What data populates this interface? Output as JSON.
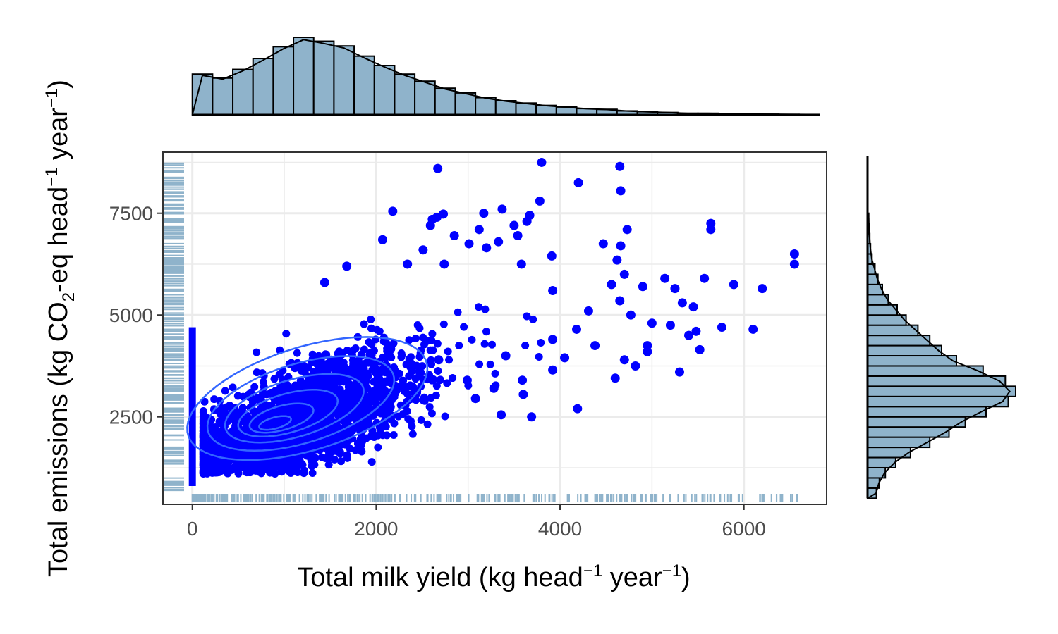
{
  "chart_data": {
    "type": "scatter",
    "title": "",
    "xlabel": {
      "before": "Total milk yield (kg head",
      "sup1": "−1",
      "mid": " year",
      "sup2": "−1",
      "after": ")"
    },
    "ylabel": {
      "part1": "Total emissions (kg CO",
      "sub": "2",
      "part2": "-eq head",
      "sup1": "−1",
      "part3": " year",
      "sup2": "−1",
      "part4": ")"
    },
    "xlim": [
      -320,
      6900
    ],
    "ylim": [
      350,
      9000
    ],
    "x_ticks": [
      0,
      2000,
      4000,
      6000
    ],
    "x_tick_labels": [
      "0",
      "2000",
      "4000",
      "6000"
    ],
    "y_ticks": [
      2500,
      5000,
      7500
    ],
    "y_tick_labels": [
      "2500",
      "5000",
      "7500"
    ],
    "grid": true,
    "legend": "none",
    "colors": {
      "points": "#0000ff",
      "density_contours": "#3366ff",
      "marginal_fill": "#8fb3cb",
      "rug": "#8fb3cb",
      "outline": "#000000",
      "grid": "#ebebeb",
      "panel_border": "#333333"
    },
    "points": [
      [
        3800,
        8750
      ],
      [
        4650,
        8650
      ],
      [
        2670,
        8600
      ],
      [
        4200,
        8250
      ],
      [
        4660,
        8050
      ],
      [
        3780,
        7800
      ],
      [
        2180,
        7550
      ],
      [
        2730,
        7480
      ],
      [
        3170,
        7500
      ],
      [
        3370,
        7600
      ],
      [
        3670,
        7450
      ],
      [
        2610,
        7350
      ],
      [
        2660,
        7400
      ],
      [
        3640,
        7300
      ],
      [
        4730,
        7100
      ],
      [
        5640,
        7250
      ],
      [
        5640,
        7100
      ],
      [
        2590,
        7200
      ],
      [
        3120,
        7100
      ],
      [
        3500,
        7200
      ],
      [
        2850,
        6950
      ],
      [
        3330,
        6800
      ],
      [
        3540,
        6950
      ],
      [
        4470,
        6750
      ],
      [
        4660,
        6700
      ],
      [
        2070,
        6850
      ],
      [
        2510,
        6600
      ],
      [
        3010,
        6750
      ],
      [
        3200,
        6650
      ],
      [
        3910,
        6450
      ],
      [
        4620,
        6350
      ],
      [
        6550,
        6500
      ],
      [
        6550,
        6250
      ],
      [
        1680,
        6200
      ],
      [
        2340,
        6250
      ],
      [
        2740,
        6250
      ],
      [
        3580,
        6250
      ],
      [
        4700,
        6000
      ],
      [
        5140,
        5900
      ],
      [
        5250,
        5650
      ],
      [
        5570,
        5900
      ],
      [
        5890,
        5750
      ],
      [
        6200,
        5650
      ],
      [
        1440,
        5800
      ],
      [
        4560,
        5750
      ],
      [
        4900,
        5700
      ],
      [
        4650,
        5350
      ],
      [
        3920,
        5600
      ],
      [
        4310,
        5100
      ],
      [
        4770,
        5000
      ],
      [
        5330,
        5300
      ],
      [
        5450,
        5200
      ],
      [
        5000,
        4800
      ],
      [
        5200,
        4750
      ],
      [
        5480,
        4600
      ],
      [
        5760,
        4700
      ],
      [
        6100,
        4650
      ],
      [
        4180,
        4650
      ],
      [
        3920,
        4400
      ],
      [
        4950,
        4250
      ],
      [
        5400,
        4500
      ],
      [
        5520,
        4150
      ],
      [
        5300,
        3600
      ],
      [
        4600,
        3450
      ],
      [
        4380,
        4250
      ],
      [
        4820,
        3750
      ],
      [
        4190,
        2700
      ],
      [
        3690,
        2500
      ],
      [
        3360,
        2550
      ],
      [
        3600,
        3050
      ],
      [
        4950,
        4100
      ],
      [
        4700,
        3900
      ],
      [
        4050,
        3950
      ],
      [
        3920,
        3650
      ],
      [
        3280,
        3200
      ],
      [
        3080,
        2950
      ],
      [
        2990,
        3400
      ],
      [
        2680,
        3900
      ],
      [
        3590,
        3400
      ],
      [
        3410,
        4000
      ]
    ],
    "marginal_x_hist": {
      "bin_start": 0,
      "bin_width": 220,
      "counts": [
        0.52,
        0.47,
        0.58,
        0.72,
        0.87,
        0.99,
        0.94,
        0.88,
        0.75,
        0.63,
        0.52,
        0.43,
        0.34,
        0.28,
        0.22,
        0.18,
        0.15,
        0.12,
        0.1,
        0.08,
        0.07,
        0.05,
        0.04,
        0.03,
        0.02,
        0.02,
        0.015,
        0.01,
        0.008,
        0.006,
        0.005
      ]
    },
    "marginal_y_hist": {
      "bin_start": 500,
      "bin_width": 250,
      "counts": [
        0.06,
        0.08,
        0.12,
        0.19,
        0.29,
        0.42,
        0.55,
        0.66,
        0.8,
        0.95,
        1.0,
        0.93,
        0.78,
        0.6,
        0.5,
        0.42,
        0.34,
        0.26,
        0.2,
        0.14,
        0.1,
        0.07,
        0.05,
        0.03,
        0.02,
        0.015,
        0.01,
        0.008
      ]
    }
  }
}
